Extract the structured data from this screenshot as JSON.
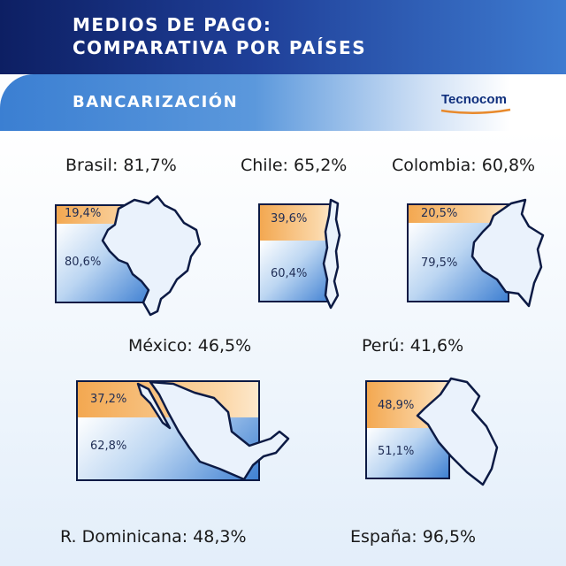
{
  "header": {
    "title_line1": "MEDIOS DE PAGO:",
    "title_line2": "COMPARATIVA POR PAÍSES"
  },
  "band": {
    "title": "BANCARIZACIÓN",
    "logo": "Tecnocom"
  },
  "countries": [
    {
      "label": "Brasil: 81,7%",
      "top_pct": "19,4%",
      "bottom_pct": "80,6%",
      "top_share": 19.4
    },
    {
      "label": "Chile: 65,2%",
      "top_pct": "39,6%",
      "bottom_pct": "60,4%",
      "top_share": 39.6
    },
    {
      "label": "Colombia: 60,8%",
      "top_pct": "20,5%",
      "bottom_pct": "79,5%",
      "top_share": 20.5
    },
    {
      "label": "México: 46,5%",
      "top_pct": "37,2%",
      "bottom_pct": "62,8%",
      "top_share": 37.2
    },
    {
      "label": "Perú: 41,6%",
      "top_pct": "48,9%",
      "bottom_pct": "51,1%",
      "top_share": 48.9
    },
    {
      "label": "R. Dominicana: 48,3%"
    },
    {
      "label": "España: 96,5%"
    }
  ],
  "colors": {
    "header_dark": "#0d1f63",
    "header_light": "#3e7bd0",
    "orange": "#f3a851",
    "blue": "#3f80d2",
    "outline": "#0c1a44"
  }
}
